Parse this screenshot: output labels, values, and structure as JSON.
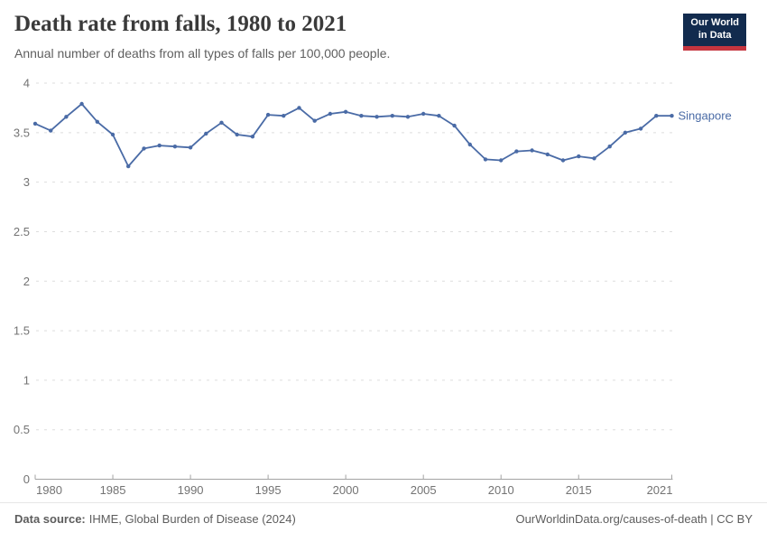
{
  "header": {
    "title": "Death rate from falls, 1980 to 2021",
    "subtitle": "Annual number of deaths from all types of falls per 100,000 people.",
    "logo": {
      "line1": "Our World",
      "line2": "in Data"
    }
  },
  "chart_data": {
    "type": "line",
    "title": "Death rate from falls, 1980 to 2021",
    "subtitle": "Annual number of deaths from all types of falls per 100,000 people.",
    "x": [
      1980,
      1981,
      1982,
      1983,
      1984,
      1985,
      1986,
      1987,
      1988,
      1989,
      1990,
      1991,
      1992,
      1993,
      1994,
      1995,
      1996,
      1997,
      1998,
      1999,
      2000,
      2001,
      2002,
      2003,
      2004,
      2005,
      2006,
      2007,
      2008,
      2009,
      2010,
      2011,
      2012,
      2013,
      2014,
      2015,
      2016,
      2017,
      2018,
      2019,
      2020,
      2021
    ],
    "series": [
      {
        "name": "Singapore",
        "values": [
          3.59,
          3.52,
          3.66,
          3.79,
          3.61,
          3.48,
          3.16,
          3.34,
          3.37,
          3.36,
          3.35,
          3.49,
          3.6,
          3.48,
          3.46,
          3.68,
          3.67,
          3.75,
          3.62,
          3.69,
          3.71,
          3.67,
          3.66,
          3.67,
          3.66,
          3.69,
          3.67,
          3.57,
          3.38,
          3.23,
          3.22,
          3.31,
          3.32,
          3.28,
          3.22,
          3.26,
          3.24,
          3.36,
          3.5,
          3.54,
          3.67,
          3.67
        ]
      }
    ],
    "x_tick_labels": [
      "1980",
      "1985",
      "1990",
      "1995",
      "2000",
      "2005",
      "2010",
      "2015",
      "2021"
    ],
    "y_tick_labels": [
      "0",
      "0.5",
      "1",
      "1.5",
      "2",
      "2.5",
      "3",
      "3.5",
      "4"
    ],
    "xlim": [
      1980,
      2021
    ],
    "ylim": [
      0,
      4
    ],
    "grid": "horizontal-dashed",
    "legend_position": "end-of-line",
    "colors": {
      "line": "#4a6ba6",
      "grid": "#dddddd",
      "axis": "#a3a3a3",
      "tick_label": "#737373"
    }
  },
  "footer": {
    "source_label": "Data source:",
    "source_text": "IHME, Global Burden of Disease (2024)",
    "credit_text": "OurWorldinData.org/causes-of-death | CC BY"
  }
}
